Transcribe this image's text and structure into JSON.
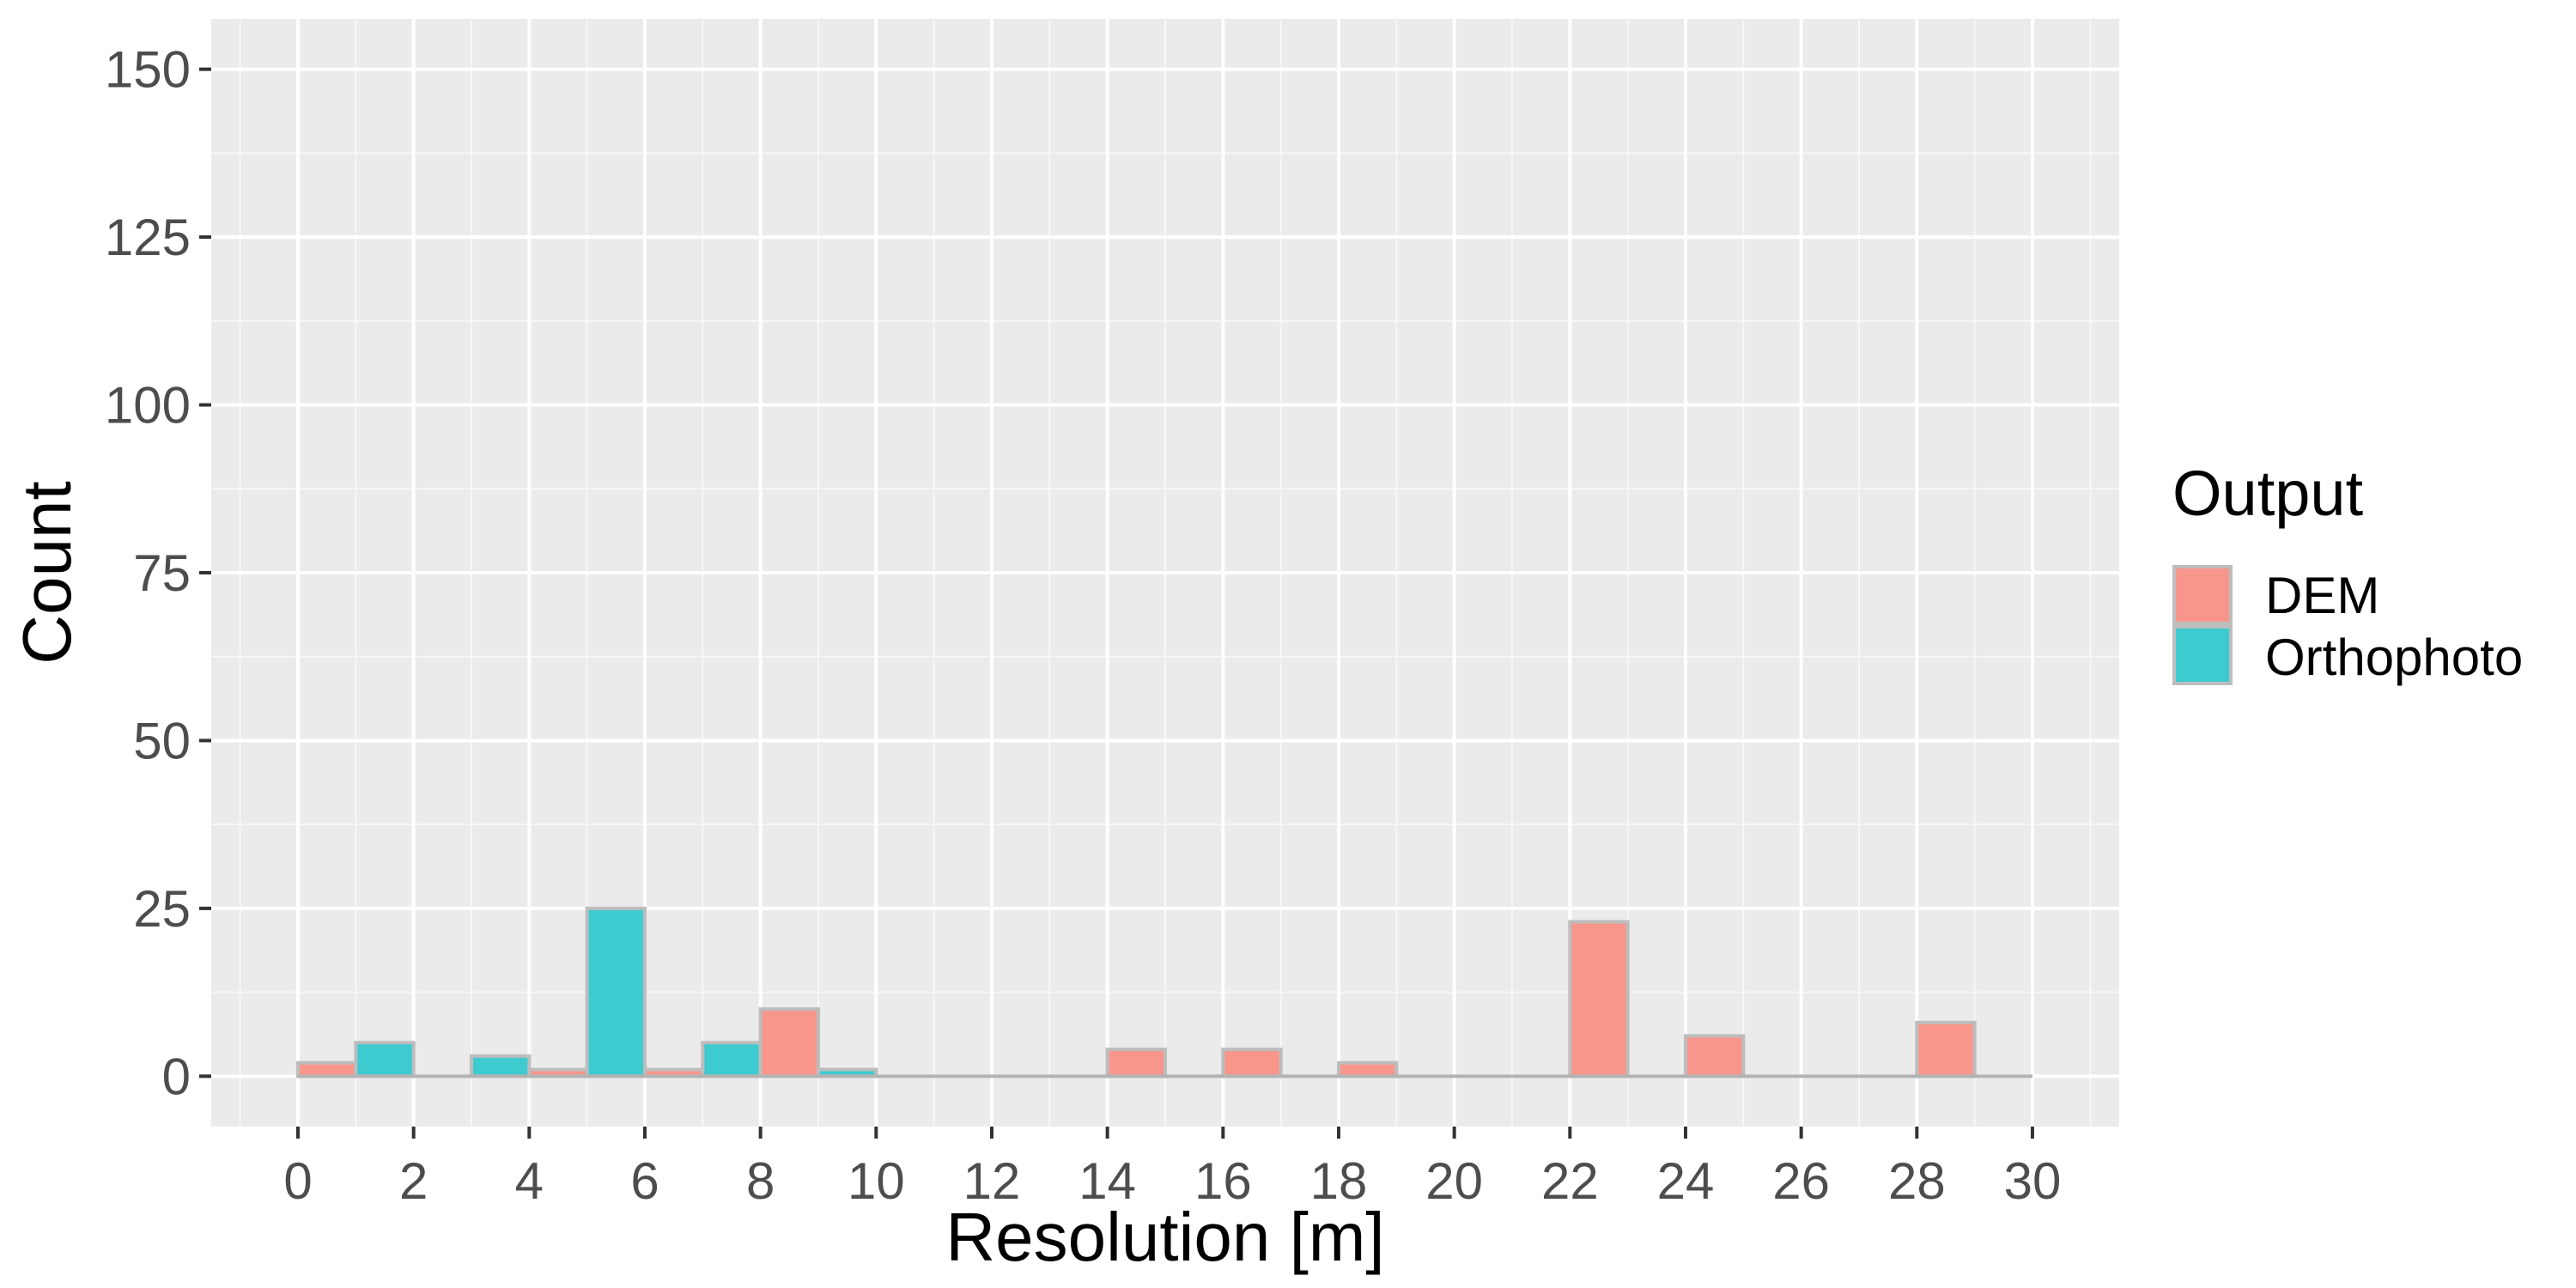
{
  "chart_data": {
    "type": "bar",
    "xlabel": "Resolution [m]",
    "ylabel": "Count",
    "xlim": [
      -1.5,
      31.5
    ],
    "ylim": [
      -7.5,
      157.5
    ],
    "x_ticks": [
      0,
      2,
      4,
      6,
      8,
      10,
      12,
      14,
      16,
      18,
      20,
      22,
      24,
      26,
      28,
      30
    ],
    "x_tick_labels": [
      "0",
      "2",
      "4",
      "6",
      "8",
      "10",
      "12",
      "14",
      "16",
      "18",
      "20",
      "22",
      "24",
      "26",
      "28",
      "30"
    ],
    "y_ticks": [
      0,
      25,
      50,
      75,
      100,
      125,
      150
    ],
    "y_tick_labels": [
      "0",
      "25",
      "50",
      "75",
      "100",
      "125",
      "150"
    ],
    "bin_width": 2,
    "bin_starts": [
      0,
      2,
      4,
      6,
      8,
      10,
      12,
      14,
      16,
      18,
      20,
      22,
      24,
      26,
      28
    ],
    "series": [
      {
        "name": "DEM",
        "color": "#f8968c",
        "values": [
          2,
          0,
          1,
          1,
          10,
          0,
          0,
          4,
          4,
          2,
          0,
          23,
          6,
          0,
          8
        ]
      },
      {
        "name": "Orthophoto",
        "color": "#3dcbd0",
        "values": [
          5,
          3,
          25,
          5,
          1,
          0,
          0,
          0,
          0,
          0,
          0,
          0,
          0,
          0,
          0
        ]
      }
    ],
    "grid": true,
    "legend": {
      "title": "Output",
      "position": "right"
    }
  }
}
